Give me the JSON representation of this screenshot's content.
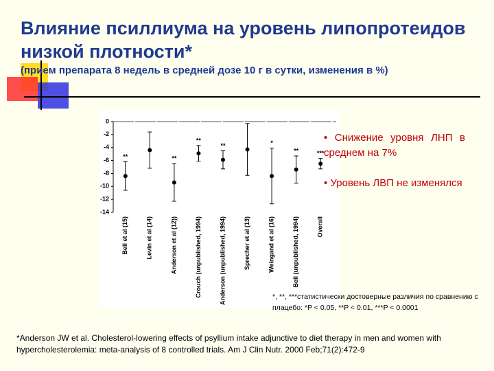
{
  "title": "Влияние псиллиума на уровень липопротеидов  низкой плотности*",
  "subtitle": "(прием препарата 8 недель в средней дозе 10 г в сутки, изменения в %)",
  "chart_data": {
    "type": "errorbar",
    "categories": [
      "Bell et al (15)",
      "Levin et al (14)",
      "Anderson et al (12))",
      "Crouch (unpublished, 1994)",
      "Anderson (unpublished, 1994)",
      "Sprecher et al (13)",
      "Weingand et al (16)",
      "Bell (unpublished, 1994)",
      "Overall"
    ],
    "values": [
      -8.4,
      -4.4,
      -9.4,
      -4.9,
      -5.9,
      -4.3,
      -8.4,
      -7.4,
      -6.5
    ],
    "errors": [
      2.2,
      2.8,
      2.9,
      1.2,
      1.4,
      4.0,
      4.3,
      2.1,
      0.8
    ],
    "significance": [
      "**",
      null,
      "**",
      "**",
      "**",
      null,
      "*",
      "**",
      "***"
    ],
    "color": "#000000",
    "ylim": [
      0,
      -14
    ],
    "yticks": [
      0,
      -2,
      -4,
      -6,
      -8,
      -10,
      -12,
      -14
    ]
  },
  "notes": [
    "Снижение уровня ЛНП в среднем на 7%",
    "Уровень ЛВП не изменялся"
  ],
  "footnote": "*, **, ***статистически достоверные различия по сравнению с плацебо: *P < 0.05, **P < 0.01, ***P < 0.0001",
  "reference": "*Anderson JW et al. Cholesterol-lowering effects of psyllium intake adjunctive to diet therapy in men and women with hypercholesterolemia: meta-analysis of 8 controlled trials.  Am J Clin Nutr. 2000 Feb;71(2):472-9"
}
